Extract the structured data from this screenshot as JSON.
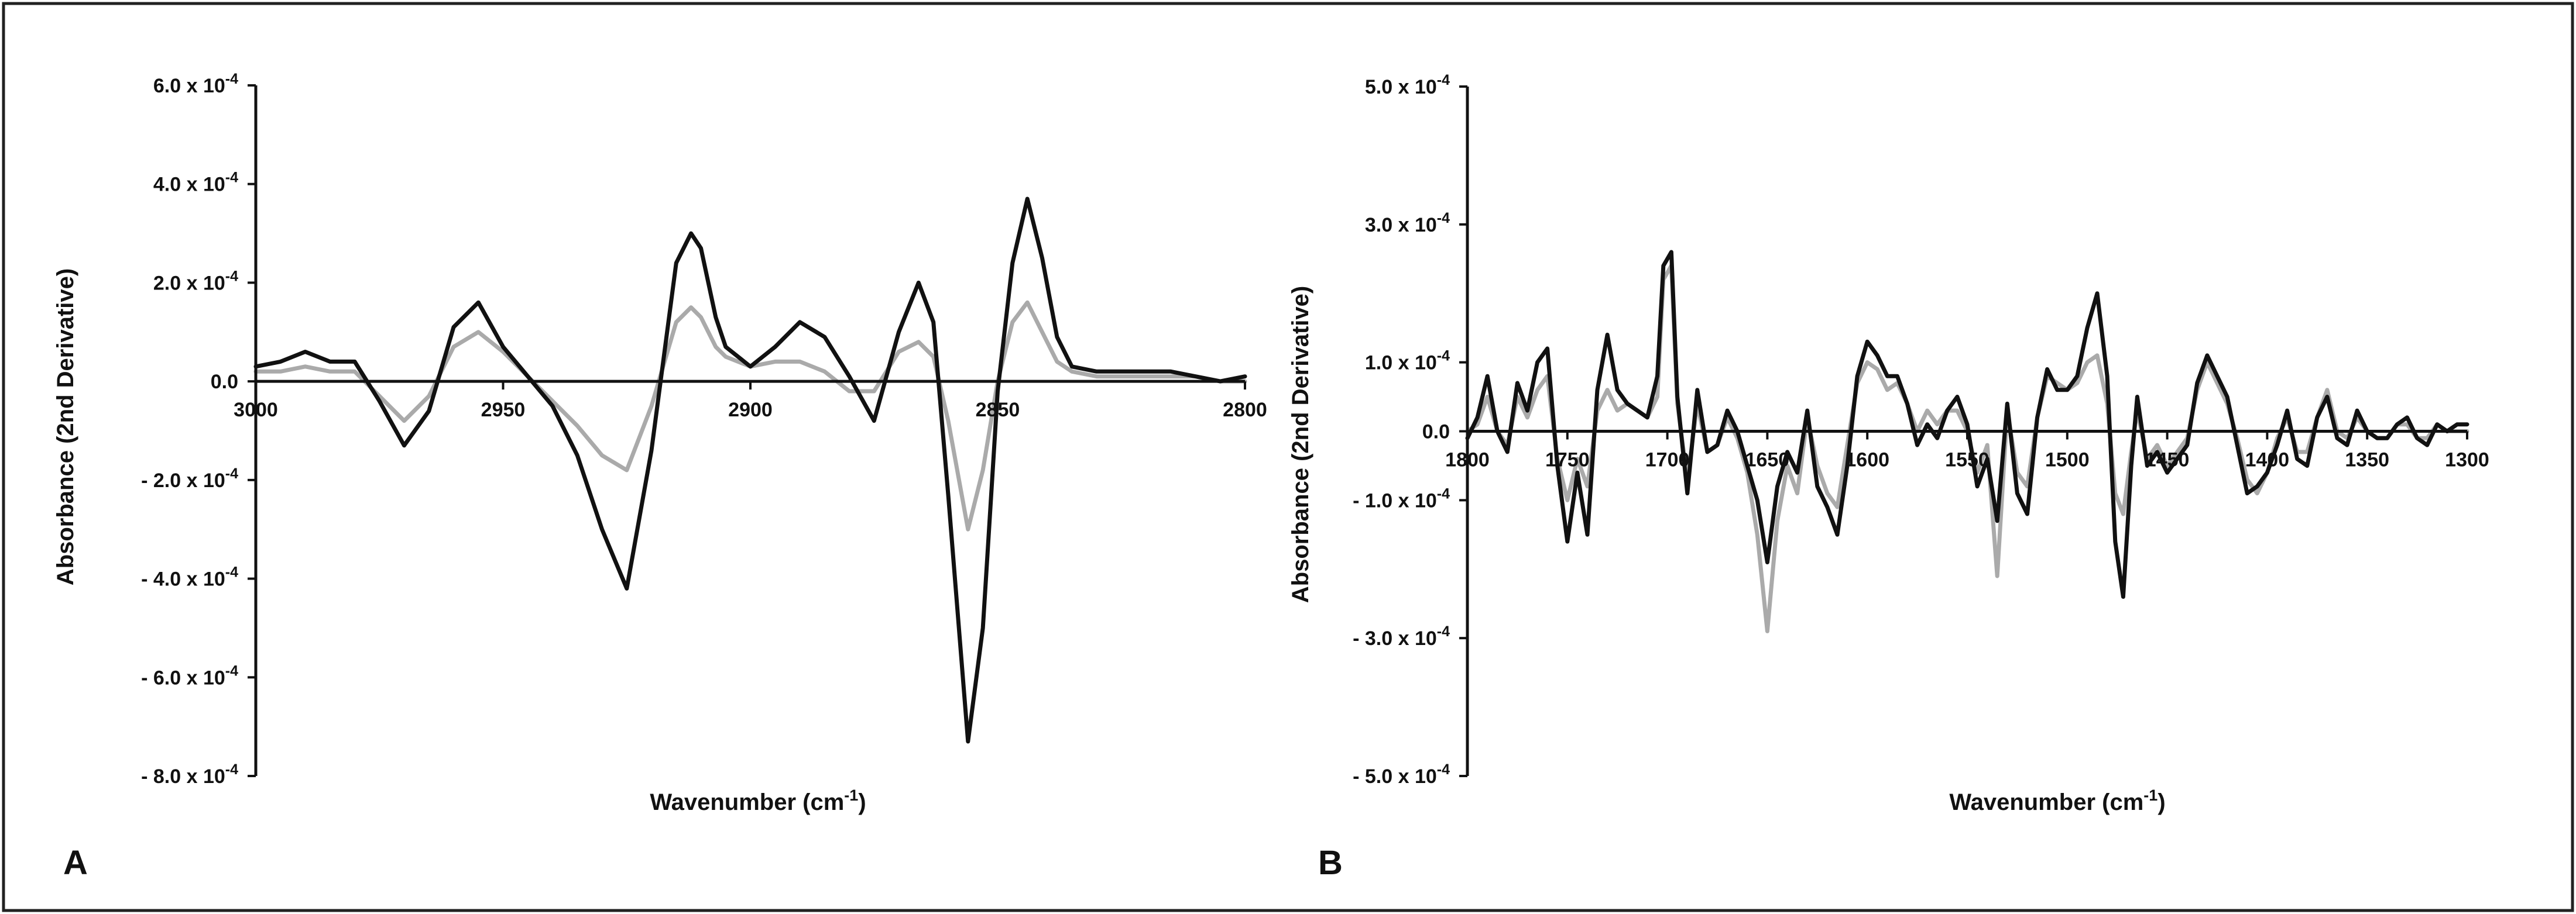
{
  "panels": [
    {
      "letter": "A",
      "chart_data": {
        "type": "line",
        "xlabel": "Wavenumber (cm-1)",
        "xlabel_main": "Wavenumber (cm",
        "xlabel_sup": "-1",
        "xlabel_end": ")",
        "ylabel": "Absorbance (2nd Derivative)",
        "xlim": [
          3000,
          2800
        ],
        "x_reversed": true,
        "ylim": [
          -0.0008,
          0.0006
        ],
        "x_ticks": [
          3000,
          2950,
          2900,
          2850,
          2800
        ],
        "x_tick_labels": [
          "3000",
          "2950",
          "2900",
          "2850",
          "2800"
        ],
        "y_ticks": [
          0.0006,
          0.0004,
          0.0002,
          0,
          -0.0002,
          -0.0004,
          -0.0006,
          -0.0008
        ],
        "y_tick_labels": [
          {
            "main": "6.0 x 10",
            "exp": "-4"
          },
          {
            "main": "4.0 x 10",
            "exp": "-4"
          },
          {
            "main": "2.0 x 10",
            "exp": "-4"
          },
          {
            "main": "0.0",
            "exp": ""
          },
          {
            "main": "- 2.0 x 10",
            "exp": "-4"
          },
          {
            "main": "- 4.0 x 10",
            "exp": "-4"
          },
          {
            "main": "- 6.0 x 10",
            "exp": "-4"
          },
          {
            "main": "- 8.0 x 10",
            "exp": "-4"
          }
        ],
        "grid": false,
        "legend": "none",
        "series": [
          {
            "color": "#111111",
            "x": [
              3000,
              2995,
              2990,
              2985,
              2980,
              2975,
              2970,
              2965,
              2960,
              2955,
              2950,
              2945,
              2940,
              2935,
              2930,
              2925,
              2920,
              2915,
              2912,
              2910,
              2907,
              2905,
              2900,
              2895,
              2890,
              2885,
              2880,
              2875,
              2870,
              2866,
              2863,
              2860,
              2856,
              2853,
              2850,
              2847,
              2844,
              2841,
              2838,
              2835,
              2830,
              2825,
              2820,
              2815,
              2810,
              2805,
              2800
            ],
            "y": [
              3e-05,
              4e-05,
              6e-05,
              4e-05,
              4e-05,
              -4e-05,
              -0.00013,
              -6e-05,
              0.00011,
              0.00016,
              7e-05,
              1e-05,
              -5e-05,
              -0.00015,
              -0.0003,
              -0.00042,
              -0.00014,
              0.00024,
              0.0003,
              0.00027,
              0.00013,
              7e-05,
              3e-05,
              7e-05,
              0.00012,
              9e-05,
              1e-05,
              -8e-05,
              0.0001,
              0.0002,
              0.00012,
              -0.00023,
              -0.00073,
              -0.0005,
              -2e-05,
              0.00024,
              0.00037,
              0.00025,
              9e-05,
              3e-05,
              2e-05,
              2e-05,
              2e-05,
              2e-05,
              1e-05,
              0.0,
              1e-05
            ]
          },
          {
            "color": "#aaaaaa",
            "x": [
              3000,
              2995,
              2990,
              2985,
              2980,
              2975,
              2970,
              2965,
              2960,
              2955,
              2950,
              2945,
              2940,
              2935,
              2930,
              2925,
              2920,
              2915,
              2912,
              2910,
              2907,
              2905,
              2900,
              2895,
              2890,
              2885,
              2880,
              2875,
              2870,
              2866,
              2863,
              2860,
              2856,
              2853,
              2850,
              2847,
              2844,
              2841,
              2838,
              2835,
              2830,
              2825,
              2820,
              2815,
              2810,
              2805,
              2800
            ],
            "y": [
              2e-05,
              2e-05,
              3e-05,
              2e-05,
              2e-05,
              -3e-05,
              -8e-05,
              -3e-05,
              7e-05,
              0.0001,
              6e-05,
              1e-05,
              -4e-05,
              -9e-05,
              -0.00015,
              -0.00018,
              -5e-05,
              0.00012,
              0.00015,
              0.00013,
              7e-05,
              5e-05,
              3e-05,
              4e-05,
              4e-05,
              2e-05,
              -2e-05,
              -2e-05,
              6e-05,
              8e-05,
              5e-05,
              -8e-05,
              -0.0003,
              -0.00018,
              0.0,
              0.00012,
              0.00016,
              0.0001,
              4e-05,
              2e-05,
              1e-05,
              1e-05,
              1e-05,
              1e-05,
              1e-05,
              0.0,
              0.0
            ]
          }
        ]
      }
    },
    {
      "letter": "B",
      "chart_data": {
        "type": "line",
        "xlabel": "Wavenumber (cm-1)",
        "xlabel_main": "Wavenumber (cm",
        "xlabel_sup": "-1",
        "xlabel_end": ")",
        "ylabel": "Absorbance (2nd Derivative)",
        "xlim": [
          1800,
          1300
        ],
        "x_reversed": true,
        "ylim": [
          -0.0005,
          0.0005
        ],
        "x_ticks": [
          1800,
          1750,
          1700,
          1650,
          1600,
          1550,
          1500,
          1450,
          1400,
          1350,
          1300
        ],
        "x_tick_labels": [
          "1800",
          "1750",
          "1700",
          "1650",
          "1600",
          "1550",
          "1500",
          "1450",
          "1400",
          "1350",
          "1300"
        ],
        "y_ticks": [
          0.0005,
          0.0003,
          0.0001,
          0,
          -0.0001,
          -0.0003,
          -0.0005
        ],
        "y_tick_labels": [
          {
            "main": "5.0 x 10",
            "exp": "-4"
          },
          {
            "main": "3.0 x 10",
            "exp": "-4"
          },
          {
            "main": "1.0 x 10",
            "exp": "-4"
          },
          {
            "main": "0.0",
            "exp": ""
          },
          {
            "main": "- 1.0 x 10",
            "exp": "-4"
          },
          {
            "main": "- 3.0 x 10",
            "exp": "-4"
          },
          {
            "main": "- 5.0 x 10",
            "exp": "-4"
          }
        ],
        "grid": false,
        "legend": "none",
        "series": [
          {
            "color": "#111111",
            "x": [
              1800,
              1795,
              1790,
              1785,
              1780,
              1775,
              1770,
              1765,
              1760,
              1755,
              1750,
              1745,
              1740,
              1735,
              1730,
              1725,
              1720,
              1715,
              1710,
              1705,
              1702,
              1698,
              1695,
              1690,
              1685,
              1680,
              1675,
              1670,
              1665,
              1660,
              1655,
              1650,
              1645,
              1640,
              1635,
              1630,
              1625,
              1620,
              1615,
              1610,
              1605,
              1600,
              1595,
              1590,
              1585,
              1580,
              1575,
              1570,
              1565,
              1560,
              1555,
              1550,
              1545,
              1540,
              1535,
              1530,
              1525,
              1520,
              1515,
              1510,
              1505,
              1500,
              1495,
              1490,
              1485,
              1480,
              1476,
              1472,
              1468,
              1465,
              1460,
              1455,
              1450,
              1445,
              1440,
              1435,
              1430,
              1425,
              1420,
              1415,
              1410,
              1405,
              1400,
              1395,
              1390,
              1385,
              1380,
              1375,
              1370,
              1365,
              1360,
              1355,
              1350,
              1345,
              1340,
              1335,
              1330,
              1325,
              1320,
              1315,
              1310,
              1305,
              1300
            ],
            "y": [
              -1e-05,
              2e-05,
              8e-05,
              0.0,
              -3e-05,
              7e-05,
              3e-05,
              0.0001,
              0.00012,
              -5e-05,
              -0.00016,
              -6e-05,
              -0.00015,
              6e-05,
              0.00014,
              6e-05,
              4e-05,
              3e-05,
              2e-05,
              8e-05,
              0.00024,
              0.00026,
              5e-05,
              -9e-05,
              6e-05,
              -3e-05,
              -2e-05,
              3e-05,
              0.0,
              -5e-05,
              -0.0001,
              -0.00019,
              -8e-05,
              -3e-05,
              -6e-05,
              3e-05,
              -8e-05,
              -0.00011,
              -0.00015,
              -5e-05,
              8e-05,
              0.00013,
              0.00011,
              8e-05,
              8e-05,
              4e-05,
              -2e-05,
              1e-05,
              -1e-05,
              3e-05,
              5e-05,
              1e-05,
              -8e-05,
              -4e-05,
              -0.00013,
              4e-05,
              -9e-05,
              -0.00012,
              2e-05,
              9e-05,
              6e-05,
              6e-05,
              8e-05,
              0.00015,
              0.0002,
              8e-05,
              -0.00016,
              -0.00024,
              -5e-05,
              5e-05,
              -5e-05,
              -3e-05,
              -6e-05,
              -4e-05,
              -2e-05,
              7e-05,
              0.00011,
              8e-05,
              5e-05,
              -2e-05,
              -9e-05,
              -8e-05,
              -6e-05,
              -2e-05,
              3e-05,
              -4e-05,
              -5e-05,
              2e-05,
              5e-05,
              -1e-05,
              -2e-05,
              3e-05,
              0.0,
              -1e-05,
              -1e-05,
              1e-05,
              2e-05,
              -1e-05,
              -2e-05,
              1e-05,
              0.0,
              1e-05,
              1e-05
            ]
          },
          {
            "color": "#aaaaaa",
            "x": [
              1800,
              1795,
              1790,
              1785,
              1780,
              1775,
              1770,
              1765,
              1760,
              1755,
              1750,
              1745,
              1740,
              1735,
              1730,
              1725,
              1720,
              1715,
              1710,
              1705,
              1702,
              1698,
              1695,
              1690,
              1685,
              1680,
              1675,
              1670,
              1665,
              1660,
              1655,
              1650,
              1645,
              1640,
              1635,
              1630,
              1625,
              1620,
              1615,
              1610,
              1605,
              1600,
              1595,
              1590,
              1585,
              1580,
              1575,
              1570,
              1565,
              1560,
              1555,
              1550,
              1545,
              1540,
              1535,
              1530,
              1525,
              1520,
              1515,
              1510,
              1505,
              1500,
              1495,
              1490,
              1485,
              1480,
              1476,
              1472,
              1468,
              1465,
              1460,
              1455,
              1450,
              1445,
              1440,
              1435,
              1430,
              1425,
              1420,
              1415,
              1410,
              1405,
              1400,
              1395,
              1390,
              1385,
              1380,
              1375,
              1370,
              1365,
              1360,
              1355,
              1350,
              1345,
              1340,
              1335,
              1330,
              1325,
              1320,
              1315,
              1310,
              1305,
              1300
            ],
            "y": [
              0.0,
              1e-05,
              5e-05,
              0.0,
              -2e-05,
              5e-05,
              2e-05,
              6e-05,
              8e-05,
              -4e-05,
              -0.0001,
              -4e-05,
              -8e-05,
              3e-05,
              6e-05,
              3e-05,
              4e-05,
              3e-05,
              2e-05,
              5e-05,
              0.00022,
              0.00024,
              4e-05,
              -7e-05,
              4e-05,
              -3e-05,
              -2e-05,
              2e-05,
              -1e-05,
              -6e-05,
              -0.00015,
              -0.00029,
              -0.00013,
              -5e-05,
              -9e-05,
              2e-05,
              -5e-05,
              -9e-05,
              -0.00011,
              -2e-05,
              7e-05,
              0.0001,
              9e-05,
              6e-05,
              7e-05,
              4e-05,
              0.0,
              3e-05,
              1e-05,
              3e-05,
              3e-05,
              0.0,
              -6e-05,
              -2e-05,
              -0.00021,
              3e-05,
              -6e-05,
              -8e-05,
              2e-05,
              8e-05,
              7e-05,
              6e-05,
              7e-05,
              0.0001,
              0.00011,
              4e-05,
              -9e-05,
              -0.00012,
              -3e-05,
              3e-05,
              -4e-05,
              -2e-05,
              -5e-05,
              -3e-05,
              -1e-05,
              6e-05,
              0.0001,
              7e-05,
              4e-05,
              -1e-05,
              -7e-05,
              -9e-05,
              -6e-05,
              -1e-05,
              2e-05,
              -3e-05,
              -3e-05,
              2e-05,
              6e-05,
              0.0,
              -1e-05,
              2e-05,
              0.0,
              -1e-05,
              -1e-05,
              1e-05,
              1e-05,
              -1e-05,
              -1e-05,
              1e-05,
              0.0,
              0.0,
              0.0
            ]
          }
        ]
      }
    }
  ]
}
